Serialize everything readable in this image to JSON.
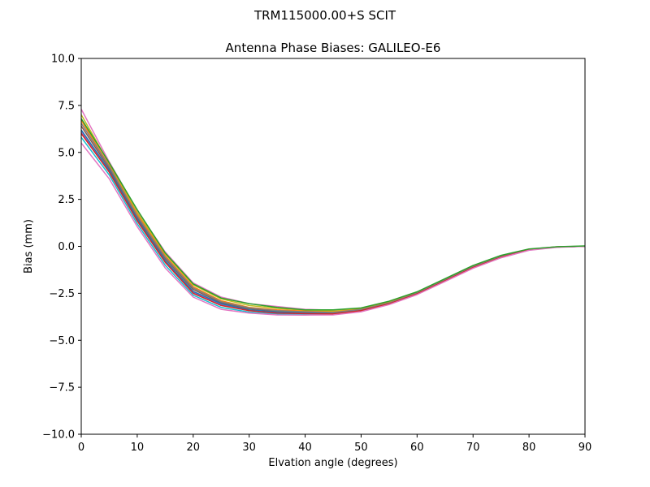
{
  "suptitle": "TRM115000.00+S  SCIT",
  "chart_data": {
    "type": "line",
    "title": "Antenna Phase Biases: GALILEO-E6",
    "xlabel": "Elvation angle (degrees)",
    "ylabel": "Bias (mm)",
    "xlim": [
      0,
      90
    ],
    "ylim": [
      -10,
      10
    ],
    "x_ticks": [
      0,
      10,
      20,
      30,
      40,
      50,
      60,
      70,
      80,
      90
    ],
    "y_ticks": [
      -10.0,
      -7.5,
      -5.0,
      -2.5,
      0.0,
      2.5,
      5.0,
      7.5,
      10.0
    ],
    "x_tick_labels": [
      "0",
      "10",
      "20",
      "30",
      "40",
      "50",
      "60",
      "70",
      "80",
      "90"
    ],
    "y_tick_labels": [
      "−10.0",
      "−7.5",
      "−5.0",
      "−2.5",
      "0.0",
      "2.5",
      "5.0",
      "7.5",
      "10.0"
    ],
    "grid": false,
    "legend": "none",
    "x": [
      0,
      5,
      10,
      15,
      20,
      25,
      30,
      35,
      40,
      45,
      50,
      55,
      60,
      65,
      70,
      75,
      80,
      85,
      90
    ],
    "series": [
      {
        "color": "#e377c2",
        "values": [
          7.3,
          4.5,
          1.9,
          -0.3,
          -1.95,
          -2.7,
          -3.05,
          -3.2,
          -3.35,
          -3.4,
          -3.3,
          -2.95,
          -2.45,
          -1.75,
          -1.05,
          -0.5,
          -0.15,
          -0.02,
          0
        ]
      },
      {
        "color": "#bcbd22",
        "values": [
          7.0,
          4.4,
          1.8,
          -0.4,
          -2.05,
          -2.8,
          -3.15,
          -3.3,
          -3.4,
          -3.45,
          -3.32,
          -2.97,
          -2.46,
          -1.76,
          -1.06,
          -0.51,
          -0.16,
          -0.02,
          0
        ]
      },
      {
        "color": "#ff7f0e",
        "values": [
          6.7,
          4.3,
          1.7,
          -0.5,
          -2.15,
          -2.9,
          -3.25,
          -3.38,
          -3.45,
          -3.5,
          -3.35,
          -3.0,
          -2.48,
          -1.78,
          -1.08,
          -0.53,
          -0.17,
          -0.03,
          0
        ]
      },
      {
        "color": "#8c564b",
        "values": [
          6.4,
          4.15,
          1.55,
          -0.65,
          -2.3,
          -3.0,
          -3.32,
          -3.45,
          -3.5,
          -3.55,
          -3.38,
          -3.02,
          -2.5,
          -1.8,
          -1.1,
          -0.55,
          -0.18,
          -0.03,
          0
        ]
      },
      {
        "color": "#9467bd",
        "values": [
          6.1,
          4.0,
          1.4,
          -0.8,
          -2.45,
          -3.1,
          -3.4,
          -3.52,
          -3.55,
          -3.58,
          -3.4,
          -3.05,
          -2.52,
          -1.82,
          -1.12,
          -0.57,
          -0.19,
          -0.04,
          0
        ]
      },
      {
        "color": "#17becf",
        "values": [
          5.8,
          3.8,
          1.2,
          -1.0,
          -2.6,
          -3.25,
          -3.5,
          -3.6,
          -3.62,
          -3.62,
          -3.45,
          -3.08,
          -2.55,
          -1.85,
          -1.15,
          -0.6,
          -0.2,
          -0.04,
          0
        ]
      },
      {
        "color": "#1f77b4",
        "values": [
          6.2,
          4.05,
          1.45,
          -0.75,
          -2.4,
          -3.05,
          -3.38,
          -3.5,
          -3.54,
          -3.57,
          -3.39,
          -3.04,
          -2.51,
          -1.81,
          -1.11,
          -0.56,
          -0.18,
          -0.03,
          0
        ]
      },
      {
        "color": "#7f7f7f",
        "values": [
          6.55,
          4.25,
          1.62,
          -0.58,
          -2.22,
          -2.95,
          -3.28,
          -3.42,
          -3.48,
          -3.52,
          -3.36,
          -3.01,
          -2.49,
          -1.79,
          -1.09,
          -0.54,
          -0.17,
          -0.03,
          0
        ]
      },
      {
        "color": "#d62728",
        "values": [
          6.0,
          3.95,
          1.35,
          -0.85,
          -2.5,
          -3.15,
          -3.42,
          -3.55,
          -3.58,
          -3.6,
          -3.42,
          -3.06,
          -2.53,
          -1.83,
          -1.13,
          -0.58,
          -0.19,
          -0.04,
          0
        ]
      },
      {
        "color": "#e377c2",
        "values": [
          5.5,
          3.6,
          1.05,
          -1.15,
          -2.7,
          -3.35,
          -3.55,
          -3.65,
          -3.66,
          -3.65,
          -3.48,
          -3.1,
          -2.57,
          -1.87,
          -1.17,
          -0.61,
          -0.21,
          -0.05,
          0
        ]
      },
      {
        "color": "#2ca02c",
        "values": [
          6.8,
          4.45,
          1.95,
          -0.35,
          -2.0,
          -2.75,
          -3.05,
          -3.25,
          -3.38,
          -3.38,
          -3.28,
          -2.92,
          -2.42,
          -1.72,
          -1.02,
          -0.48,
          -0.14,
          -0.02,
          0.02
        ]
      }
    ]
  }
}
